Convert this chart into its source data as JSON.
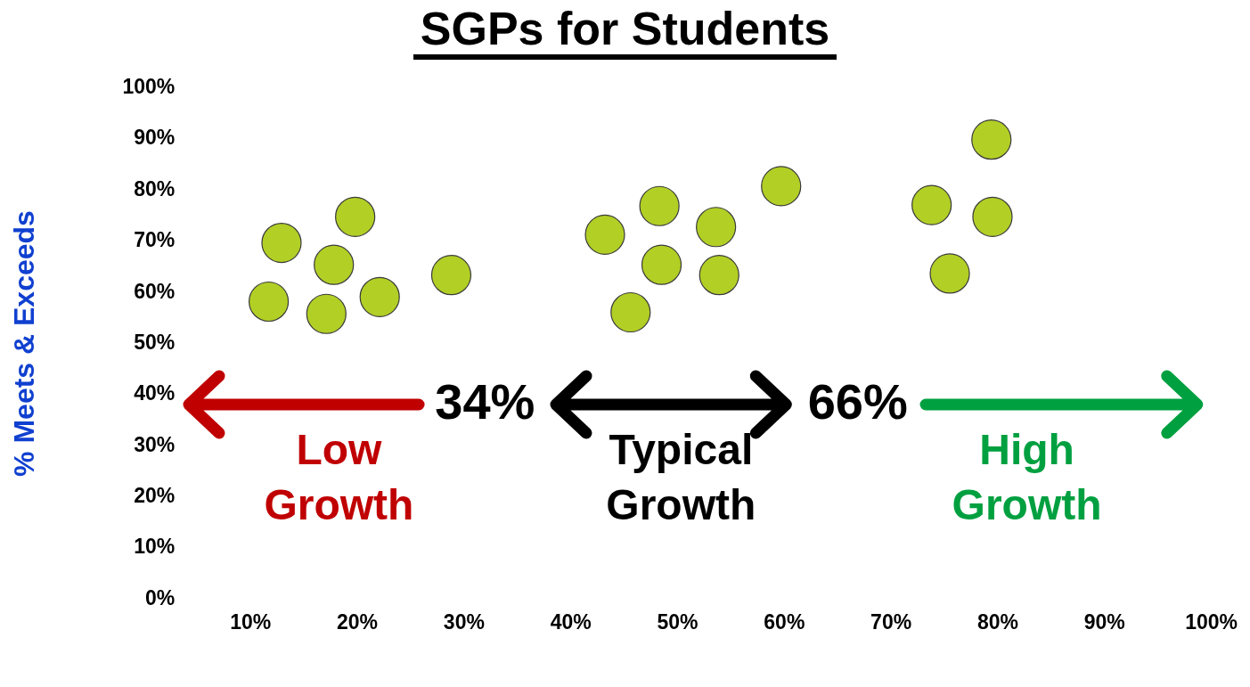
{
  "chart_data": {
    "type": "scatter",
    "title": "SGPs for Students",
    "ylabel": "% Meets & Exceeds",
    "x": [
      11.7,
      12.9,
      17.1,
      17.8,
      19.8,
      22.1,
      28.8,
      43.2,
      45.6,
      48.3,
      48.5,
      53.6,
      53.9,
      59.7,
      73.8,
      75.5,
      79.4,
      79.5
    ],
    "values": [
      58.2,
      69.7,
      55.8,
      65.4,
      74.8,
      59.1,
      63.4,
      71.3,
      56.1,
      76.9,
      65.4,
      72.8,
      63.4,
      80.8,
      77.1,
      63.7,
      89.9,
      74.8
    ],
    "color": "#b2cf25",
    "marker": "circle",
    "grid": false,
    "legend": false,
    "xlim": [
      10,
      100
    ],
    "xticks": [
      {
        "value": 10,
        "label": "10%"
      },
      {
        "value": 20,
        "label": "20%"
      },
      {
        "value": 30,
        "label": "30%"
      },
      {
        "value": 40,
        "label": "40%"
      },
      {
        "value": 50,
        "label": "50%"
      },
      {
        "value": 60,
        "label": "60%"
      },
      {
        "value": 70,
        "label": "70%"
      },
      {
        "value": 80,
        "label": "80%"
      },
      {
        "value": 90,
        "label": "90%"
      },
      {
        "value": 100,
        "label": "100%"
      }
    ],
    "ylim": [
      0,
      100
    ],
    "yticks": [
      {
        "value": 0,
        "label": "0%"
      },
      {
        "value": 10,
        "label": "10%"
      },
      {
        "value": 20,
        "label": "20%"
      },
      {
        "value": 30,
        "label": "30%"
      },
      {
        "value": 40,
        "label": "40%"
      },
      {
        "value": 50,
        "label": "50%"
      },
      {
        "value": 60,
        "label": "60%"
      },
      {
        "value": 70,
        "label": "70%"
      },
      {
        "value": 80,
        "label": "80%"
      },
      {
        "value": 90,
        "label": "90%"
      },
      {
        "value": 100,
        "label": "100%"
      }
    ],
    "annotations": [
      "34%",
      "66%",
      "Low Growth",
      "Typical Growth",
      "High Growth"
    ]
  }
}
